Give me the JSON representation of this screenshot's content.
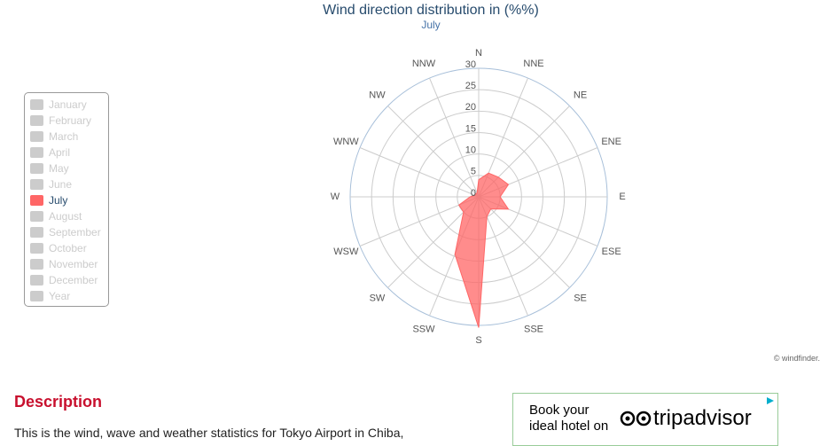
{
  "chart_data": {
    "type": "radar",
    "title": "Wind direction distribution in (%%)",
    "subtitle": "July",
    "categories": [
      "N",
      "NNE",
      "NE",
      "ENE",
      "E",
      "ESE",
      "SE",
      "SSE",
      "S",
      "SSW",
      "SW",
      "WSW",
      "W",
      "WNW",
      "NW",
      "NNW"
    ],
    "series": [
      {
        "name": "July",
        "color": "#ff6666",
        "values": [
          4,
          6,
          6.5,
          7.5,
          5,
          7.5,
          4,
          5,
          30.5,
          14.5,
          5,
          5,
          2,
          1,
          1,
          1
        ]
      }
    ],
    "ylim": [
      0,
      30
    ],
    "yticks": [
      0,
      5,
      10,
      15,
      20,
      25,
      30
    ],
    "grid": true,
    "legend": {
      "position": "left",
      "items": [
        "January",
        "February",
        "March",
        "April",
        "May",
        "June",
        "July",
        "August",
        "September",
        "October",
        "November",
        "December",
        "Year"
      ],
      "active": 6
    }
  },
  "credit": "© windfinder.",
  "description": {
    "heading": "Description",
    "text": "This is the wind, wave and weather statistics for Tokyo Airport in Chiba,"
  },
  "ad": {
    "line1": "Book your",
    "line2": "ideal hotel on",
    "brand": "tripadvisor"
  }
}
